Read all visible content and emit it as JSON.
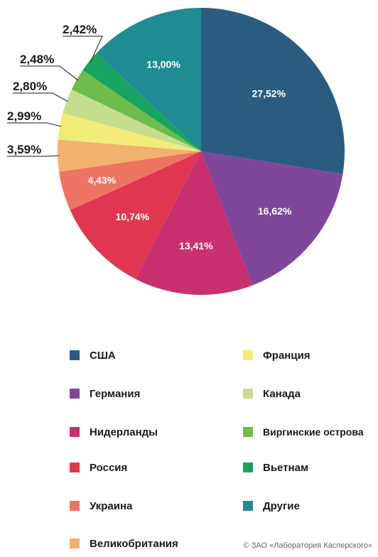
{
  "chart_data": {
    "type": "pie",
    "slices": [
      {
        "name": "США",
        "value": 27.52,
        "label": "27,52%",
        "color": "#2b5c80",
        "label_pos": "inside"
      },
      {
        "name": "Германия",
        "value": 16.62,
        "label": "16,62%",
        "color": "#7e479a",
        "label_pos": "inside"
      },
      {
        "name": "Нидерланды",
        "value": 13.41,
        "label": "13,41%",
        "color": "#c8306f",
        "label_pos": "inside"
      },
      {
        "name": "Россия",
        "value": 10.74,
        "label": "10,74%",
        "color": "#e0364f",
        "label_pos": "inside"
      },
      {
        "name": "Украина",
        "value": 4.43,
        "label": "4,43%",
        "color": "#ee7462",
        "label_pos": "inside"
      },
      {
        "name": "Великобритания",
        "value": 3.59,
        "label": "3,59%",
        "color": "#f2b16e",
        "label_pos": "outside"
      },
      {
        "name": "Франция",
        "value": 2.99,
        "label": "2,99%",
        "color": "#f1ec78",
        "label_pos": "outside"
      },
      {
        "name": "Канада",
        "value": 2.8,
        "label": "2,80%",
        "color": "#c6dc8e",
        "label_pos": "outside"
      },
      {
        "name": "Виргинские острова",
        "value": 2.48,
        "label": "2,48%",
        "color": "#6cbd4b",
        "label_pos": "outside"
      },
      {
        "name": "Вьетнам",
        "value": 2.42,
        "label": "2,42%",
        "color": "#17a461",
        "label_pos": "outside"
      },
      {
        "name": "Другие",
        "value": 13.0,
        "label": "13,00%",
        "color": "#1f8c93",
        "label_pos": "inside"
      }
    ],
    "start": "12 o'clock",
    "direction": "clockwise",
    "legend_placement": "bottom, two columns"
  },
  "legend": {
    "items": [
      {
        "label": "США",
        "color": "#2b5c80"
      },
      {
        "label": "Германия",
        "color": "#7e479a"
      },
      {
        "label": "Нидерланды",
        "color": "#c8306f"
      },
      {
        "label": "Россия",
        "color": "#e0364f"
      },
      {
        "label": "Украина",
        "color": "#ee7462"
      },
      {
        "label": "Великобритания",
        "color": "#f2b16e"
      },
      {
        "label": "Франция",
        "color": "#f1ec78"
      },
      {
        "label": "Канада",
        "color": "#c6dc8e"
      },
      {
        "label": "Виргинские острова",
        "color": "#6cbd4b"
      },
      {
        "label": "Вьетнам",
        "color": "#17a461"
      },
      {
        "label": "Другие",
        "color": "#1f8c93"
      }
    ]
  },
  "footer": {
    "copyright": "© ЗАО «Лаборатория Касперского»"
  }
}
